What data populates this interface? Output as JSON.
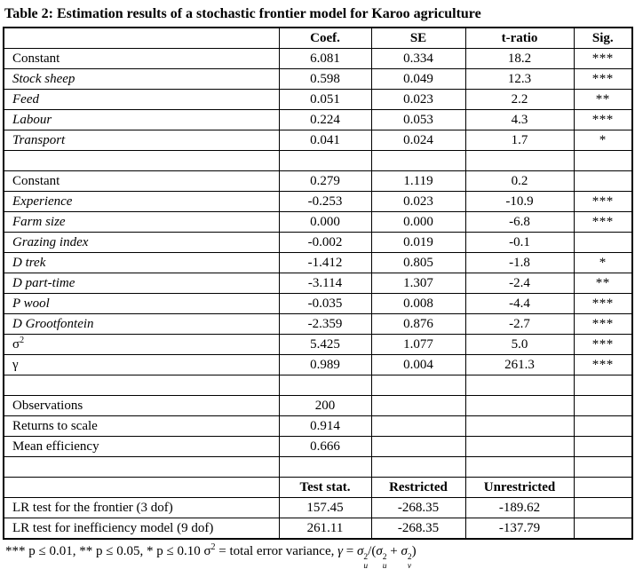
{
  "title": "Table 2: Estimation results of a stochastic frontier model for Karoo agriculture",
  "table": {
    "rows": [
      {
        "kind": "header",
        "cells": [
          "",
          "Coef.",
          "SE",
          "t-ratio",
          "Sig."
        ]
      },
      {
        "kind": "data",
        "label": "Constant",
        "italic": false,
        "coef": "6.081",
        "se": "0.334",
        "t": "18.2",
        "sig": "***"
      },
      {
        "kind": "data",
        "label": "Stock sheep",
        "italic": true,
        "coef": "0.598",
        "se": "0.049",
        "t": "12.3",
        "sig": "***"
      },
      {
        "kind": "data",
        "label": "Feed",
        "italic": true,
        "coef": "0.051",
        "se": "0.023",
        "t": "2.2",
        "sig": "**"
      },
      {
        "kind": "data",
        "label": "Labour",
        "italic": true,
        "coef": "0.224",
        "se": "0.053",
        "t": "4.3",
        "sig": "***"
      },
      {
        "kind": "data",
        "label": "Transport",
        "italic": true,
        "coef": "0.041",
        "se": "0.024",
        "t": "1.7",
        "sig": "*"
      },
      {
        "kind": "empty"
      },
      {
        "kind": "data",
        "label": "Constant",
        "italic": false,
        "coef": "0.279",
        "se": "1.119",
        "t": "0.2",
        "sig": ""
      },
      {
        "kind": "data",
        "label": "Experience",
        "italic": true,
        "coef": "-0.253",
        "se": "0.023",
        "t": "-10.9",
        "sig": "***"
      },
      {
        "kind": "data",
        "label": "Farm size",
        "italic": true,
        "coef": "0.000",
        "se": "0.000",
        "t": "-6.8",
        "sig": "***"
      },
      {
        "kind": "data",
        "label": "Grazing index",
        "italic": true,
        "coef": "-0.002",
        "se": "0.019",
        "t": "-0.1",
        "sig": ""
      },
      {
        "kind": "data",
        "label": "D trek",
        "italic": true,
        "coef": "-1.412",
        "se": "0.805",
        "t": "-1.8",
        "sig": "*"
      },
      {
        "kind": "data",
        "label": "D part-time",
        "italic": true,
        "coef": "-3.114",
        "se": "1.307",
        "t": "-2.4",
        "sig": "**"
      },
      {
        "kind": "data",
        "label": "P wool",
        "italic": true,
        "coef": "-0.035",
        "se": "0.008",
        "t": "-4.4",
        "sig": "***"
      },
      {
        "kind": "data",
        "label": "D Grootfontein",
        "italic": true,
        "coef": "-2.359",
        "se": "0.876",
        "t": "-2.7",
        "sig": "***"
      },
      {
        "kind": "data",
        "label": "σ",
        "label_sup": "2",
        "italic": false,
        "coef": "5.425",
        "se": "1.077",
        "t": "5.0",
        "sig": "***"
      },
      {
        "kind": "data",
        "label": "γ",
        "italic": false,
        "coef": "0.989",
        "se": "0.004",
        "t": "261.3",
        "sig": "***"
      },
      {
        "kind": "empty"
      },
      {
        "kind": "data",
        "label": "Observations",
        "italic": false,
        "coef": "200",
        "se": "",
        "t": "",
        "sig": ""
      },
      {
        "kind": "data",
        "label": "Returns to scale",
        "italic": false,
        "coef": "0.914",
        "se": "",
        "t": "",
        "sig": ""
      },
      {
        "kind": "data",
        "label": "Mean efficiency",
        "italic": false,
        "coef": "0.666",
        "se": "",
        "t": "",
        "sig": ""
      },
      {
        "kind": "empty"
      },
      {
        "kind": "header",
        "cells": [
          "",
          "Test stat.",
          "Restricted",
          "Unrestricted",
          ""
        ]
      },
      {
        "kind": "data",
        "label": "LR test for the frontier (3 dof)",
        "italic": false,
        "coef": "157.45",
        "se": "-268.35",
        "t": "-189.62",
        "sig": ""
      },
      {
        "kind": "data",
        "label": "LR test for inefficiency model (9 dof)",
        "italic": false,
        "coef": "261.11",
        "se": "-268.35",
        "t": "-137.79",
        "sig": ""
      }
    ]
  },
  "chart_data": {
    "type": "table",
    "title": "Table 2: Estimation results of a stochastic frontier model for Karoo agriculture",
    "columns": [
      "",
      "Coef.",
      "SE",
      "t-ratio",
      "Sig."
    ],
    "frontier_rows": [
      [
        "Constant",
        6.081,
        0.334,
        18.2,
        "***"
      ],
      [
        "Stock sheep",
        0.598,
        0.049,
        12.3,
        "***"
      ],
      [
        "Feed",
        0.051,
        0.023,
        2.2,
        "**"
      ],
      [
        "Labour",
        0.224,
        0.053,
        4.3,
        "***"
      ],
      [
        "Transport",
        0.041,
        0.024,
        1.7,
        "*"
      ]
    ],
    "inefficiency_rows": [
      [
        "Constant",
        0.279,
        1.119,
        0.2,
        ""
      ],
      [
        "Experience",
        -0.253,
        0.023,
        -10.9,
        "***"
      ],
      [
        "Farm size",
        0.0,
        0.0,
        -6.8,
        "***"
      ],
      [
        "Grazing index",
        -0.002,
        0.019,
        -0.1,
        ""
      ],
      [
        "D trek",
        -1.412,
        0.805,
        -1.8,
        "*"
      ],
      [
        "D part-time",
        -3.114,
        1.307,
        -2.4,
        "**"
      ],
      [
        "P wool",
        -0.035,
        0.008,
        -4.4,
        "***"
      ],
      [
        "D Grootfontein",
        -2.359,
        0.876,
        -2.7,
        "***"
      ],
      [
        "σ2",
        5.425,
        1.077,
        5.0,
        "***"
      ],
      [
        "γ",
        0.989,
        0.004,
        261.3,
        "***"
      ]
    ],
    "summary_rows": [
      [
        "Observations",
        200
      ],
      [
        "Returns to scale",
        0.914
      ],
      [
        "Mean efficiency",
        0.666
      ]
    ],
    "lr_columns": [
      "",
      "Test stat.",
      "Restricted",
      "Unrestricted"
    ],
    "lr_rows": [
      [
        "LR test for the frontier (3 dof)",
        157.45,
        -268.35,
        -189.62
      ],
      [
        "LR test for inefficiency model (9 dof)",
        261.11,
        -268.35,
        -137.79
      ]
    ]
  },
  "footnote_tokens": [
    {
      "text": "*** p ≤ 0.01, ** p ≤ 0.05, * p ≤ 0.10 σ"
    },
    {
      "sup": "2"
    },
    {
      "text": " = total error variance, "
    },
    {
      "math": "γ"
    },
    {
      "text": " = "
    },
    {
      "math": "σ"
    },
    {
      "stack": {
        "sup": "2",
        "sub": "u"
      }
    },
    {
      "text": "/("
    },
    {
      "math": "σ"
    },
    {
      "stack": {
        "sup": "2",
        "sub": "u"
      }
    },
    {
      "text": " + "
    },
    {
      "math": "σ"
    },
    {
      "stack": {
        "sup": "2",
        "sub": "v"
      }
    },
    {
      "text": ")"
    }
  ]
}
